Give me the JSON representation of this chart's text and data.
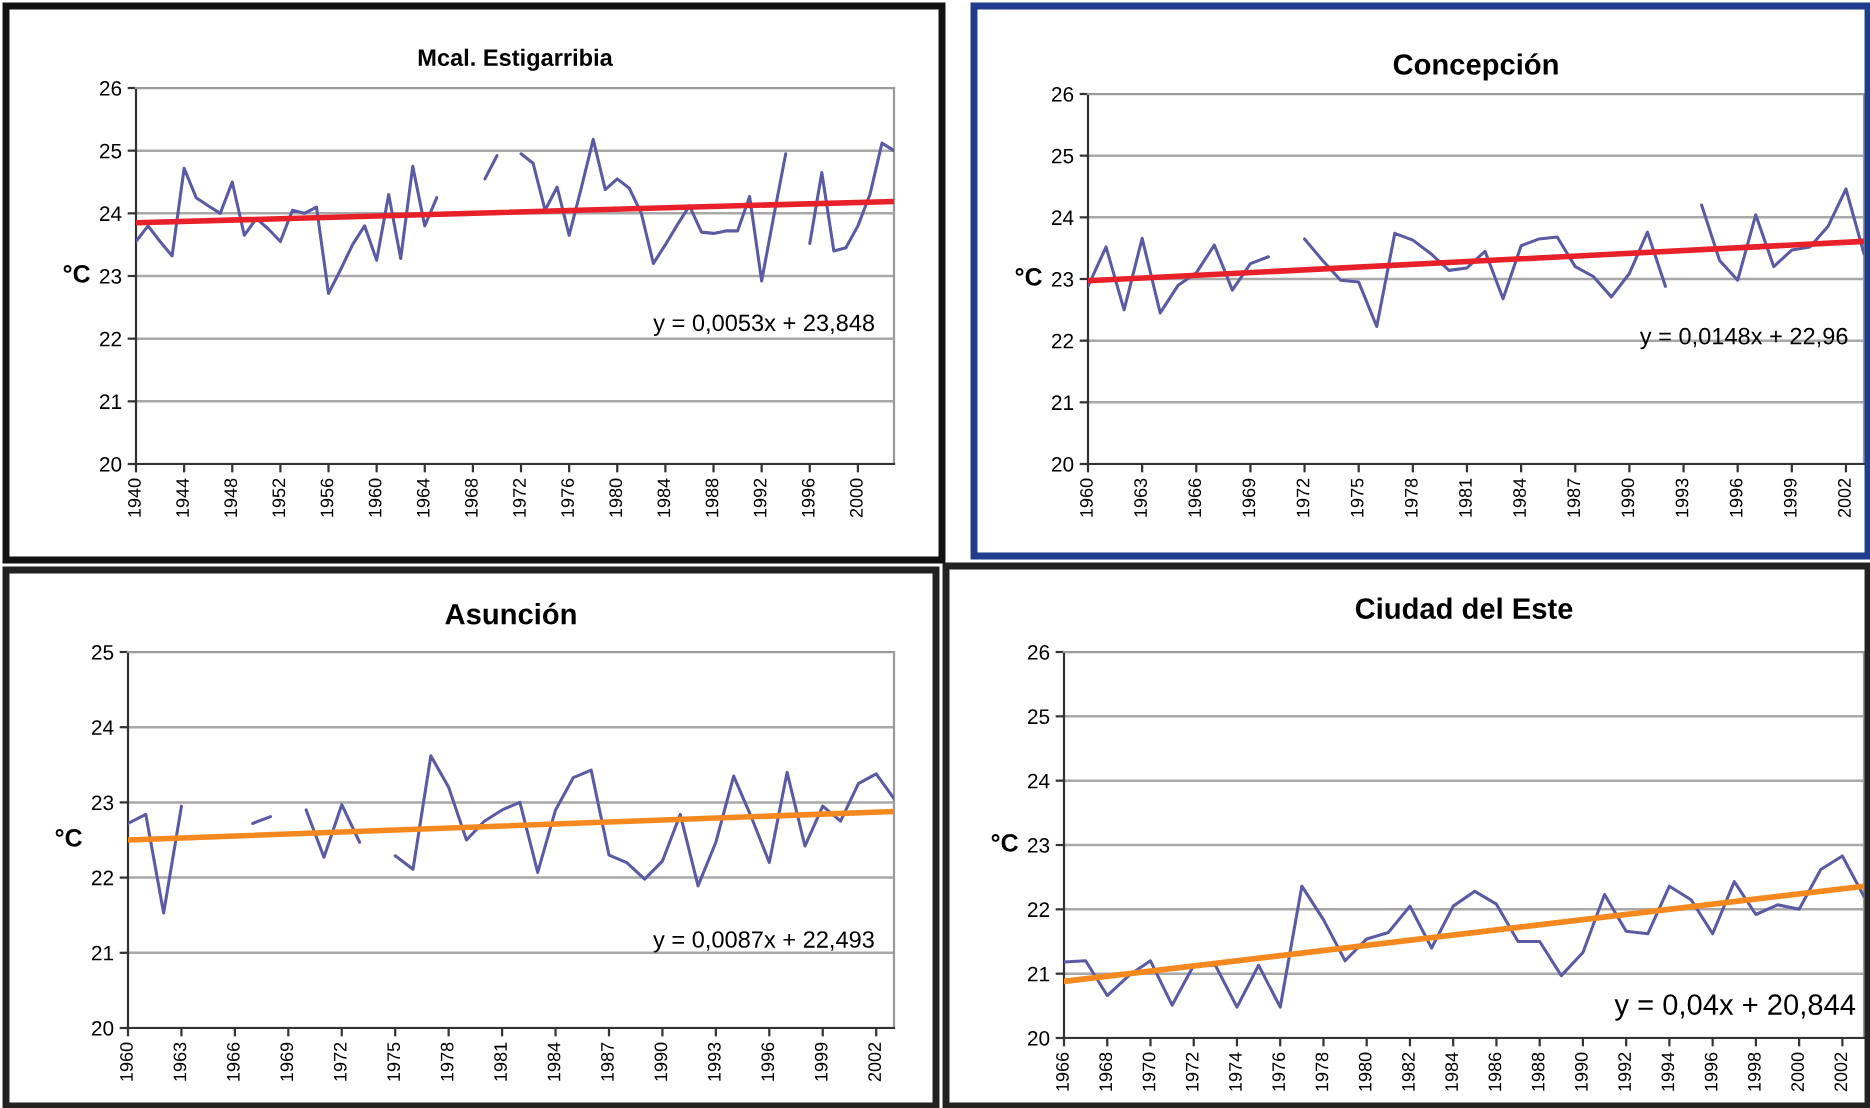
{
  "chart_data": [
    {
      "type": "line",
      "title": "Mcal. Estigarribia",
      "ylabel": "°C",
      "grid": "y",
      "x": [
        1940,
        1941,
        1942,
        1943,
        1944,
        1945,
        1946,
        1947,
        1948,
        1949,
        1950,
        1951,
        1952,
        1953,
        1954,
        1955,
        1956,
        1957,
        1958,
        1959,
        1960,
        1961,
        1962,
        1963,
        1964,
        1965,
        1966,
        1967,
        1968,
        1969,
        1970,
        1971,
        1972,
        1973,
        1974,
        1975,
        1976,
        1977,
        1978,
        1979,
        1980,
        1981,
        1982,
        1983,
        1984,
        1985,
        1986,
        1987,
        1988,
        1989,
        1990,
        1991,
        1992,
        1993,
        1994,
        1995,
        1996,
        1997,
        1998,
        1999,
        2000,
        2001,
        2002,
        2003
      ],
      "xlim": [
        1940,
        2003
      ],
      "xticks": [
        1940,
        1944,
        1948,
        1952,
        1956,
        1960,
        1964,
        1968,
        1972,
        1976,
        1980,
        1984,
        1988,
        1992,
        1996,
        2000
      ],
      "ylim": [
        20,
        26
      ],
      "yticks": [
        20,
        21,
        22,
        23,
        24,
        25,
        26
      ],
      "annotations": [
        "y = 0,0053x + 23,848"
      ],
      "series": [
        {
          "color": "#5a5aa5",
          "values": [
            23.55,
            23.8,
            23.55,
            23.32,
            24.72,
            24.25,
            24.12,
            24.0,
            24.5,
            23.65,
            23.92,
            23.75,
            23.55,
            24.05,
            24.0,
            24.1,
            22.72,
            23.1,
            23.5,
            23.8,
            23.25,
            24.3,
            23.28,
            24.75,
            23.8,
            24.25,
            null,
            null,
            null,
            24.55,
            24.92,
            null,
            24.95,
            24.8,
            24.05,
            24.42,
            23.65,
            24.4,
            25.18,
            24.38,
            24.55,
            24.4,
            24.0,
            23.2,
            23.5,
            23.82,
            24.12,
            23.7,
            23.68,
            23.72,
            23.72,
            24.27,
            22.92,
            23.95,
            24.95,
            null,
            23.52,
            24.65,
            23.4,
            23.45,
            23.8,
            24.3,
            25.12,
            25.0
          ]
        },
        {
          "type": "line",
          "color": "#e8202a",
          "x": [
            1940,
            2003
          ],
          "values": [
            23.85,
            24.19
          ]
        }
      ]
    },
    {
      "type": "line",
      "title": "Concepción",
      "ylabel": "°C",
      "grid": "y",
      "x": [
        1960,
        1961,
        1962,
        1963,
        1964,
        1965,
        1966,
        1967,
        1968,
        1969,
        1970,
        1971,
        1972,
        1973,
        1974,
        1975,
        1976,
        1977,
        1978,
        1979,
        1980,
        1981,
        1982,
        1983,
        1984,
        1985,
        1986,
        1987,
        1988,
        1989,
        1990,
        1991,
        1992,
        1993,
        1994,
        1995,
        1996,
        1997,
        1998,
        1999,
        2000,
        2001,
        2002,
        2003
      ],
      "xlim": [
        1960,
        2003
      ],
      "xticks": [
        1960,
        1963,
        1966,
        1969,
        1972,
        1975,
        1978,
        1981,
        1984,
        1987,
        1990,
        1993,
        1996,
        1999,
        2002
      ],
      "ylim": [
        20,
        26
      ],
      "yticks": [
        20,
        21,
        22,
        23,
        24,
        25,
        26
      ],
      "annotations": [
        "y = 0,0148x + 22,96"
      ],
      "series": [
        {
          "color": "#5a5aa5",
          "values": [
            22.88,
            23.52,
            22.5,
            23.66,
            22.45,
            22.9,
            23.1,
            23.55,
            22.82,
            23.25,
            23.36,
            null,
            23.65,
            23.3,
            22.98,
            22.95,
            22.23,
            23.74,
            23.63,
            23.41,
            23.14,
            23.18,
            23.45,
            22.68,
            23.54,
            23.65,
            23.68,
            23.2,
            23.04,
            22.71,
            23.09,
            23.76,
            22.88,
            null,
            24.2,
            23.3,
            22.98,
            24.04,
            23.2,
            23.47,
            23.52,
            23.85,
            24.46,
            23.41
          ]
        },
        {
          "type": "line",
          "color": "#e8202a",
          "x": [
            1960,
            2003
          ],
          "values": [
            22.97,
            23.61
          ]
        }
      ]
    },
    {
      "type": "line",
      "title": "Asunción",
      "ylabel": "°C",
      "grid": "y",
      "x": [
        1960,
        1961,
        1962,
        1963,
        1964,
        1965,
        1966,
        1967,
        1968,
        1969,
        1970,
        1971,
        1972,
        1973,
        1974,
        1975,
        1976,
        1977,
        1978,
        1979,
        1980,
        1981,
        1982,
        1983,
        1984,
        1985,
        1986,
        1987,
        1988,
        1989,
        1990,
        1991,
        1992,
        1993,
        1994,
        1995,
        1996,
        1997,
        1998,
        1999,
        2000,
        2001,
        2002,
        2003
      ],
      "xlim": [
        1960,
        2003
      ],
      "xticks": [
        1960,
        1963,
        1966,
        1969,
        1972,
        1975,
        1978,
        1981,
        1984,
        1987,
        1990,
        1993,
        1996,
        1999,
        2002
      ],
      "ylim": [
        20,
        25
      ],
      "yticks": [
        20,
        21,
        22,
        23,
        24,
        25
      ],
      "annotations": [
        "y = 0,0087x + 22,493"
      ],
      "series": [
        {
          "color": "#5a5aa5",
          "values": [
            22.72,
            22.84,
            21.53,
            22.95,
            null,
            null,
            null,
            22.72,
            22.81,
            null,
            22.9,
            22.27,
            22.97,
            22.47,
            null,
            22.29,
            22.11,
            23.62,
            23.2,
            22.5,
            22.75,
            22.9,
            23.0,
            22.07,
            22.9,
            23.33,
            23.43,
            22.3,
            22.2,
            21.98,
            22.22,
            22.84,
            21.89,
            22.47,
            23.35,
            22.8,
            22.2,
            23.4,
            22.42,
            22.95,
            22.75,
            23.25,
            23.38,
            23.05
          ]
        },
        {
          "type": "line",
          "color": "#f5891f",
          "x": [
            1960,
            2003
          ],
          "values": [
            22.5,
            22.88
          ]
        }
      ]
    },
    {
      "type": "line",
      "title": "Ciudad del Este",
      "ylabel": "°C",
      "grid": "y",
      "x": [
        1966,
        1967,
        1968,
        1969,
        1970,
        1971,
        1972,
        1973,
        1974,
        1975,
        1976,
        1977,
        1978,
        1979,
        1980,
        1981,
        1982,
        1983,
        1984,
        1985,
        1986,
        1987,
        1988,
        1989,
        1990,
        1991,
        1992,
        1993,
        1994,
        1995,
        1996,
        1997,
        1998,
        1999,
        2000,
        2001,
        2002,
        2003
      ],
      "xlim": [
        1966,
        2003
      ],
      "xticks": [
        1966,
        1968,
        1970,
        1972,
        1974,
        1976,
        1978,
        1980,
        1982,
        1984,
        1986,
        1988,
        1990,
        1992,
        1994,
        1996,
        1998,
        2000,
        2002
      ],
      "ylim": [
        20,
        26
      ],
      "yticks": [
        20,
        21,
        22,
        23,
        24,
        25,
        26
      ],
      "annotations": [
        "y = 0,04x + 20,844"
      ],
      "series": [
        {
          "color": "#5a5aa5",
          "values": [
            21.18,
            21.2,
            20.66,
            20.97,
            21.2,
            20.51,
            21.13,
            21.13,
            20.48,
            21.13,
            20.48,
            22.36,
            21.84,
            21.2,
            21.54,
            21.64,
            22.05,
            21.4,
            22.05,
            22.28,
            22.08,
            21.5,
            21.5,
            20.97,
            21.33,
            22.23,
            21.66,
            21.62,
            22.36,
            22.15,
            21.62,
            22.43,
            21.92,
            22.07,
            22.0,
            22.62,
            22.83,
            22.2
          ]
        },
        {
          "type": "line",
          "color": "#f5891f",
          "x": [
            1966,
            2003
          ],
          "values": [
            20.88,
            22.36
          ]
        }
      ]
    }
  ]
}
